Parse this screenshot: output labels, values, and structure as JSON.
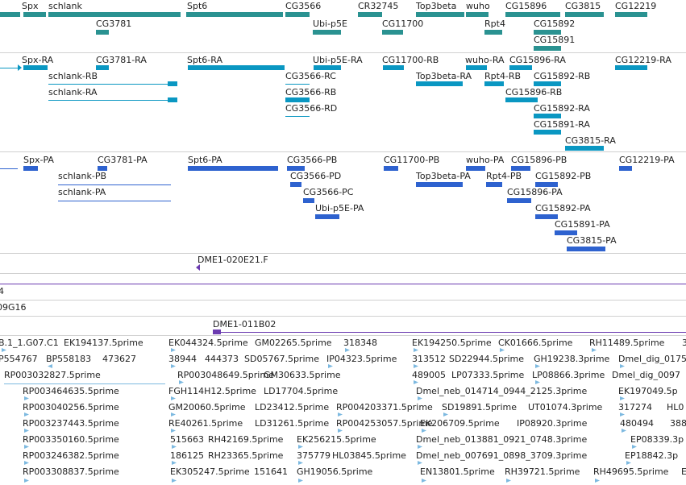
{
  "colors": {
    "gene": "#2a9291",
    "transcript": "#0a97c2",
    "protein": "#2e62cf",
    "clone": "#6b3bb0",
    "est": "#7db9e0",
    "text": "#222222",
    "separator": "#d0d0d0"
  },
  "gene_track": {
    "labels": [
      "Spx",
      "schlank",
      "Spt6",
      "CG3566",
      "CR32745",
      "Top3beta",
      "wuho",
      "CG15896",
      "CG3815",
      "CG12219",
      "CG3781",
      "Ubi-p5E",
      "CG11700",
      "Rpt4",
      "CG15892",
      "CG15891"
    ]
  },
  "transcript_track": {
    "labels": [
      "Spx-RA",
      "CG3781-RA",
      "Spt6-RA",
      "Ubi-p5E-RA",
      "CG11700-RB",
      "wuho-RA",
      "CG15896-RA",
      "CG12219-RA",
      "schlank-RB",
      "CG3566-RC",
      "Top3beta-RA",
      "Rpt4-RB",
      "CG15892-RB",
      "schlank-RA",
      "CG3566-RB",
      "CG15896-RB",
      "CG3566-RD",
      "CG15892-RA",
      "CG15891-RA",
      "CG3815-RA"
    ]
  },
  "protein_track": {
    "labels": [
      "Spx-PA",
      "CG3781-PA",
      "Spt6-PA",
      "CG3566-PB",
      "CG11700-PB",
      "wuho-PA",
      "CG15896-PB",
      "CG12219-PA",
      "schlank-PB",
      "CG3566-PD",
      "Top3beta-PA",
      "Rpt4-PB",
      "CG15892-PB",
      "schlank-PA",
      "CG3566-PC",
      "CG15896-PA",
      "Ubi-p5E-PA",
      "CG15892-PA",
      "CG15891-PA",
      "CG3815-PA"
    ]
  },
  "clone_track": {
    "labels": [
      "DME1-020E21.F",
      "4",
      "09G16",
      "DME1-011B02"
    ]
  },
  "est_track": {
    "rows": [
      [
        "B.1_1.G07.C1",
        "EK194137.5prime",
        "EK044324.5prime",
        "GM02265.5prime",
        "318348",
        "EK194250.5prime",
        "CK01666.5prime",
        "RH11489.5prime",
        "3"
      ],
      [
        "P554767",
        "BP558183",
        "473627",
        "38944",
        "444373",
        "SD05767.5prime",
        "IP04323.5prime",
        "313512",
        "SD22944.5prime",
        "GH19238.3prime",
        "Dmel_dig_0175"
      ],
      [
        "RP003032827.5prime",
        "RP003048649.5prime",
        "GM30633.5prime",
        "489005",
        "LP07333.5prime",
        "LP08866.3prime",
        "Dmel_dig_0097"
      ],
      [
        "RP003464635.5prime",
        "FGH114H12.5prime",
        "LD17704.5prime",
        "Dmel_neb_014714_0944_2125.3prime",
        "EK197049.5p"
      ],
      [
        "RP003040256.5prime",
        "GM20060.5prime",
        "LD23412.5prime",
        "RP004203371.5prime",
        "SD19891.5prime",
        "UT01074.3prime",
        "317274",
        "HL0"
      ],
      [
        "RP003237443.5prime",
        "RE40261.5prime",
        "LD31261.5prime",
        "RP004253057.5prime",
        "EK206709.5prime",
        "IP08920.3prime",
        "480494",
        "388"
      ],
      [
        "RP003350160.5prime",
        "515663",
        "RH42169.5prime",
        "EK256215.5prime",
        "Dmel_neb_013881_0921_0748.3prime",
        "EP08339.3p"
      ],
      [
        "RP003246382.5prime",
        "186125",
        "RH23365.5prime",
        "375779",
        "HL03845.5prime",
        "Dmel_neb_007691_0898_3709.3prime",
        "EP18842.3p"
      ],
      [
        "RP003308837.5prime",
        "EK305247.5prime",
        "151641",
        "GH19056.5prime",
        "EN13801.5prime",
        "RH39721.5prime",
        "RH49695.5prime",
        "E"
      ]
    ]
  }
}
